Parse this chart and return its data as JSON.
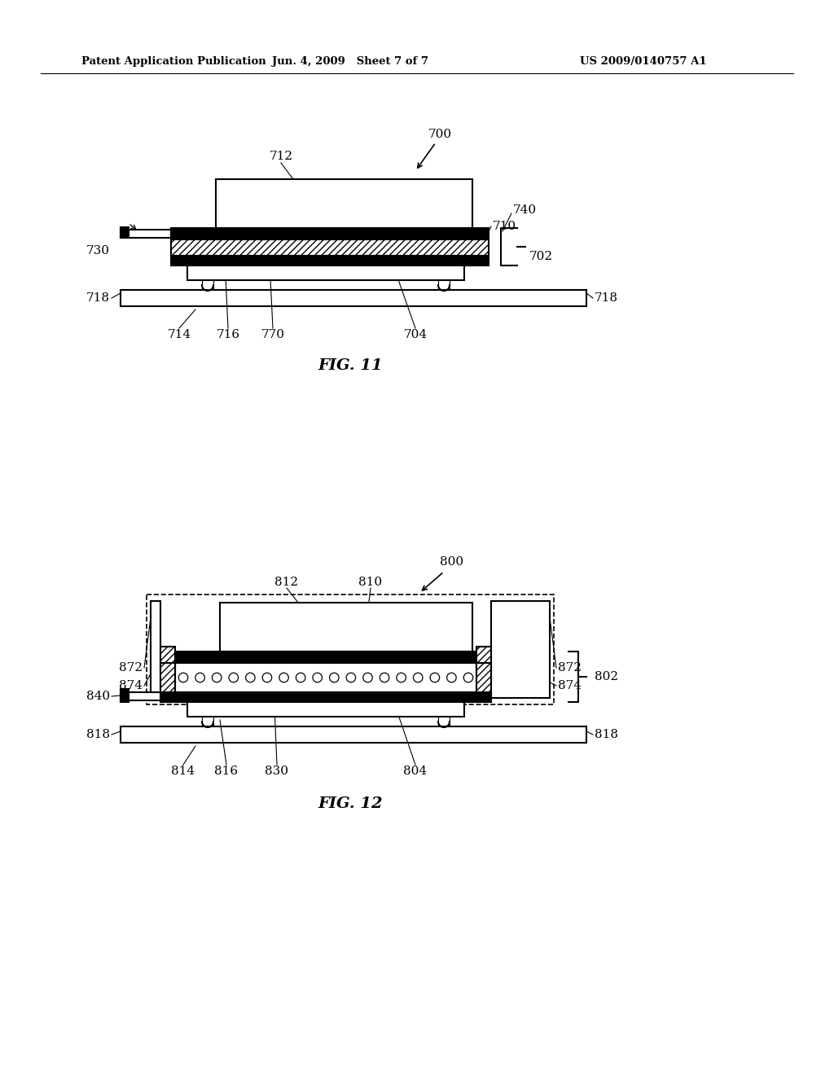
{
  "background_color": "#ffffff",
  "header_left": "Patent Application Publication",
  "header_center": "Jun. 4, 2009   Sheet 7 of 7",
  "header_right": "US 2009/0140757 A1",
  "fig11_title": "FIG. 11",
  "fig12_title": "FIG. 12"
}
